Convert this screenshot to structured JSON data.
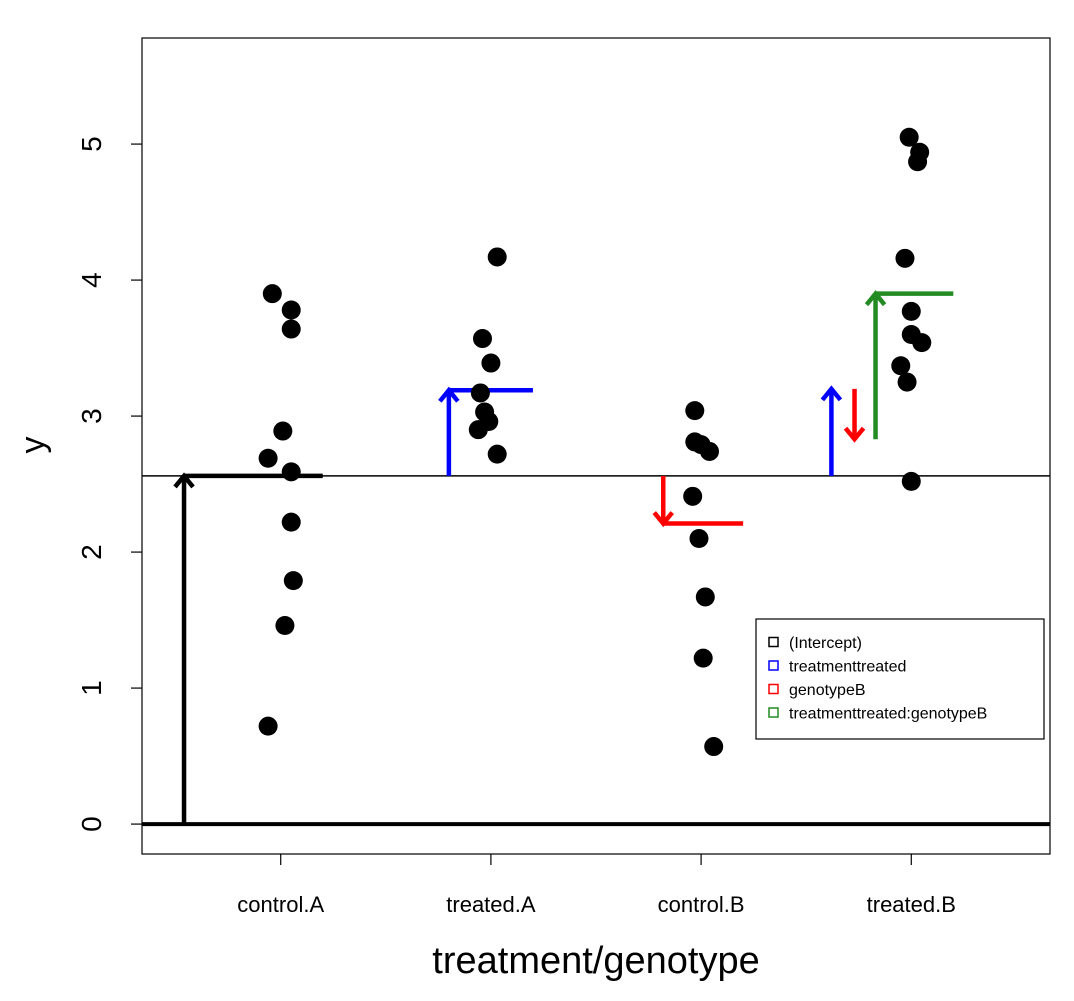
{
  "chart_data": {
    "type": "scatter",
    "xlabel": "treatment/genotype",
    "ylabel": "y",
    "categories": [
      "control.A",
      "treated.A",
      "control.B",
      "treated.B"
    ],
    "yticks": [
      "0",
      "1",
      "2",
      "3",
      "4",
      "5"
    ],
    "ylim": [
      -0.22,
      5.78
    ],
    "grid": false,
    "reference_lines": {
      "zero": 0,
      "intercept": 2.56
    },
    "points": [
      {
        "group": "control.A",
        "x_offset": -0.04,
        "y": 3.9
      },
      {
        "group": "control.A",
        "x_offset": 0.05,
        "y": 3.78
      },
      {
        "group": "control.A",
        "x_offset": 0.05,
        "y": 3.64
      },
      {
        "group": "control.A",
        "x_offset": 0.01,
        "y": 2.89
      },
      {
        "group": "control.A",
        "x_offset": -0.06,
        "y": 2.69
      },
      {
        "group": "control.A",
        "x_offset": 0.05,
        "y": 2.59
      },
      {
        "group": "control.A",
        "x_offset": 0.05,
        "y": 2.22
      },
      {
        "group": "control.A",
        "x_offset": 0.06,
        "y": 1.79
      },
      {
        "group": "control.A",
        "x_offset": 0.02,
        "y": 1.46
      },
      {
        "group": "control.A",
        "x_offset": -0.06,
        "y": 0.72
      },
      {
        "group": "treated.A",
        "x_offset": 0.03,
        "y": 4.17
      },
      {
        "group": "treated.A",
        "x_offset": -0.04,
        "y": 3.57
      },
      {
        "group": "treated.A",
        "x_offset": 0.0,
        "y": 3.39
      },
      {
        "group": "treated.A",
        "x_offset": -0.05,
        "y": 3.17
      },
      {
        "group": "treated.A",
        "x_offset": -0.03,
        "y": 3.03
      },
      {
        "group": "treated.A",
        "x_offset": -0.01,
        "y": 2.96
      },
      {
        "group": "treated.A",
        "x_offset": -0.06,
        "y": 2.9
      },
      {
        "group": "treated.A",
        "x_offset": 0.03,
        "y": 2.72
      },
      {
        "group": "control.B",
        "x_offset": -0.03,
        "y": 3.04
      },
      {
        "group": "control.B",
        "x_offset": -0.03,
        "y": 2.81
      },
      {
        "group": "control.B",
        "x_offset": 0.0,
        "y": 2.79
      },
      {
        "group": "control.B",
        "x_offset": 0.04,
        "y": 2.74
      },
      {
        "group": "control.B",
        "x_offset": -0.04,
        "y": 2.41
      },
      {
        "group": "control.B",
        "x_offset": -0.01,
        "y": 2.1
      },
      {
        "group": "control.B",
        "x_offset": 0.02,
        "y": 1.67
      },
      {
        "group": "control.B",
        "x_offset": 0.01,
        "y": 1.22
      },
      {
        "group": "control.B",
        "x_offset": 0.06,
        "y": 0.57
      },
      {
        "group": "treated.B",
        "x_offset": -0.01,
        "y": 5.05
      },
      {
        "group": "treated.B",
        "x_offset": 0.04,
        "y": 4.94
      },
      {
        "group": "treated.B",
        "x_offset": 0.03,
        "y": 4.87
      },
      {
        "group": "treated.B",
        "x_offset": -0.03,
        "y": 4.16
      },
      {
        "group": "treated.B",
        "x_offset": 0.0,
        "y": 3.77
      },
      {
        "group": "treated.B",
        "x_offset": 0.0,
        "y": 3.6
      },
      {
        "group": "treated.B",
        "x_offset": 0.05,
        "y": 3.54
      },
      {
        "group": "treated.B",
        "x_offset": -0.05,
        "y": 3.37
      },
      {
        "group": "treated.B",
        "x_offset": -0.02,
        "y": 3.25
      },
      {
        "group": "treated.B",
        "x_offset": 0.0,
        "y": 2.52
      }
    ],
    "arrows": [
      {
        "name": "(Intercept)",
        "color": "#000000",
        "x": 0.54,
        "from": 0,
        "to": 2.56,
        "level_x": [
          0.54,
          1.2
        ]
      },
      {
        "name": "treatmenttreated",
        "color": "#0000ff",
        "x": 1.8,
        "from": 2.56,
        "to": 3.19,
        "level_x": [
          1.8,
          2.2
        ]
      },
      {
        "name": "genotypeB",
        "color": "#ff0000",
        "x": 2.82,
        "from": 2.56,
        "to": 2.21,
        "level_x": [
          2.82,
          3.2
        ]
      },
      {
        "name": "treatmenttreated",
        "color": "#0000ff",
        "x": 3.62,
        "from": 2.56,
        "to": 3.2,
        "level_x": null
      },
      {
        "name": "genotypeB",
        "color": "#ff0000",
        "x": 3.73,
        "from": 3.2,
        "to": 2.83,
        "level_x": null
      },
      {
        "name": "treatmenttreated:genotypeB",
        "color": "#228b22",
        "x": 3.83,
        "from": 2.83,
        "to": 3.9,
        "level_x": [
          3.83,
          4.2
        ]
      }
    ],
    "legend": {
      "position": "right",
      "entries": [
        {
          "label": "(Intercept)",
          "color": "#000000"
        },
        {
          "label": "treatmenttreated",
          "color": "#0000ff"
        },
        {
          "label": "genotypeB",
          "color": "#ff0000"
        },
        {
          "label": "treatmenttreated:genotypeB",
          "color": "#228b22"
        }
      ]
    }
  }
}
